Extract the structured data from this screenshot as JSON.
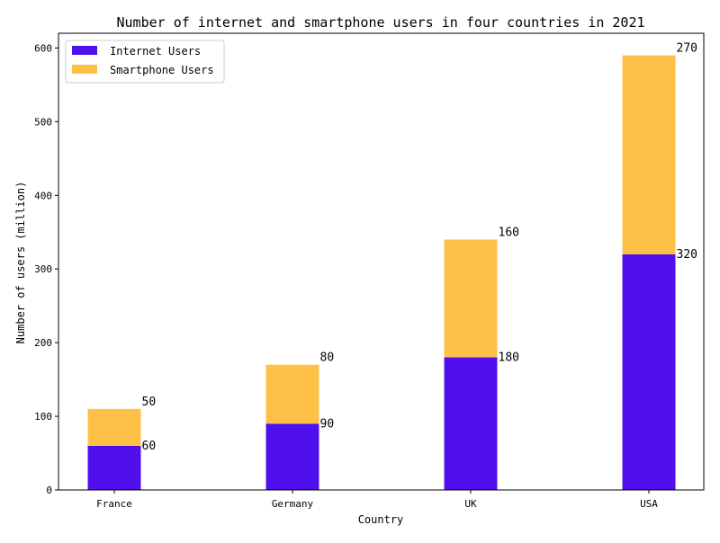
{
  "chart_data": {
    "type": "bar",
    "stacked": true,
    "title": "Number of internet and smartphone users in four countries in 2021",
    "xlabel": "Country",
    "ylabel": "Number of users (million)",
    "categories": [
      "France",
      "Germany",
      "UK",
      "USA"
    ],
    "series": [
      {
        "name": "Internet Users",
        "color": "#5010ee",
        "values": [
          60,
          90,
          180,
          320
        ]
      },
      {
        "name": "Smartphone Users",
        "color": "#ffc048",
        "values": [
          50,
          80,
          160,
          270
        ]
      }
    ],
    "ylim": [
      0,
      620
    ],
    "yticks": [
      0,
      100,
      200,
      300,
      400,
      500,
      600
    ],
    "grid": false,
    "legend_position": "top-left"
  }
}
